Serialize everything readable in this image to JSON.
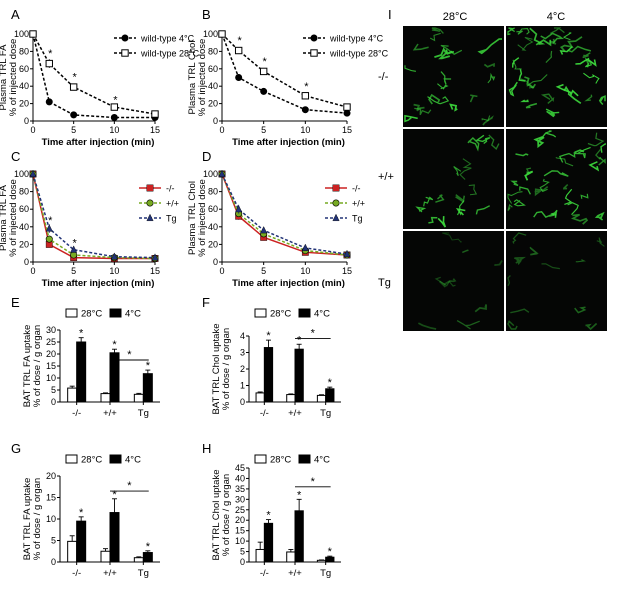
{
  "panel_letters": [
    "A",
    "B",
    "C",
    "D",
    "E",
    "F",
    "G",
    "H",
    "I"
  ],
  "colors": {
    "wt4": "#000000",
    "wt28": "#000000",
    "ko": "#cc2222",
    "wt": "#77aa22",
    "tg": "#223377",
    "bar_cold": "#000000",
    "bar_warm": "#ffffff",
    "microscopy_bg": "#050605",
    "microscopy_signal": "#3ddc3d"
  },
  "panel_i": {
    "col_headers": [
      "28°C",
      "4°C"
    ],
    "row_labels": [
      "-/-",
      "+/+",
      "Tg"
    ]
  },
  "chart_data": [
    {
      "id": "A",
      "type": "line",
      "ylabel_lines": [
        "Plasma TRL FA",
        "% of injected dose"
      ],
      "xlabel": "Time after injection (min)",
      "xlim": [
        0,
        15
      ],
      "ylim": [
        0,
        100
      ],
      "xticks": [
        "0",
        "5",
        "10",
        "15"
      ],
      "yticks": [
        "0",
        "20",
        "40",
        "60",
        "80",
        "100"
      ],
      "x": [
        0,
        2,
        5,
        10,
        15
      ],
      "series": [
        {
          "name": "wild-type 4°C",
          "values": [
            100,
            22,
            7,
            4,
            4
          ],
          "marker": "circle",
          "dash": true,
          "color_key": "wt4",
          "err": [
            0,
            3,
            1,
            1,
            1
          ]
        },
        {
          "name": "wild-type 28°C",
          "values": [
            100,
            66,
            39,
            16,
            8
          ],
          "marker": "square-open",
          "dash": true,
          "color_key": "wt28",
          "err": [
            0,
            5,
            3,
            2,
            2
          ]
        }
      ],
      "stars": [
        {
          "x": 2,
          "y": 78
        },
        {
          "x": 5,
          "y": 51
        },
        {
          "x": 10,
          "y": 25
        }
      ],
      "legend_position": "top-right"
    },
    {
      "id": "B",
      "type": "line",
      "ylabel_lines": [
        "Plasma TRL Chol",
        "% of injected dose"
      ],
      "xlabel": "Time after injection (min)",
      "xlim": [
        0,
        15
      ],
      "ylim": [
        0,
        100
      ],
      "xticks": [
        "0",
        "5",
        "10",
        "15"
      ],
      "yticks": [
        "0",
        "20",
        "40",
        "60",
        "80",
        "100"
      ],
      "x": [
        0,
        2,
        5,
        10,
        15
      ],
      "series": [
        {
          "name": "wild-type 4°C",
          "values": [
            100,
            50,
            34,
            13,
            9
          ],
          "marker": "circle",
          "dash": true,
          "color_key": "wt4",
          "err": [
            0,
            3,
            2,
            1,
            1
          ]
        },
        {
          "name": "wild-type 28°C",
          "values": [
            100,
            81,
            57,
            29,
            16
          ],
          "marker": "square-open",
          "dash": true,
          "color_key": "wt28",
          "err": [
            0,
            4,
            3,
            2,
            2
          ]
        }
      ],
      "stars": [
        {
          "x": 2,
          "y": 93
        },
        {
          "x": 5,
          "y": 69
        },
        {
          "x": 10,
          "y": 40
        }
      ],
      "legend_position": "top-right"
    },
    {
      "id": "C",
      "type": "line",
      "ylabel_lines": [
        "Plasma TRL FA",
        "% of injected dose"
      ],
      "xlabel": "Time after injection (min)",
      "xlim": [
        0,
        15
      ],
      "ylim": [
        0,
        100
      ],
      "xticks": [
        "0",
        "5",
        "10",
        "15"
      ],
      "yticks": [
        "0",
        "20",
        "40",
        "60",
        "80",
        "100"
      ],
      "x": [
        0,
        2,
        5,
        10,
        15
      ],
      "series": [
        {
          "name": "-/-",
          "values": [
            100,
            20,
            5,
            4,
            4
          ],
          "marker": "square",
          "dash": false,
          "color_key": "ko",
          "err": [
            0,
            3,
            1,
            1,
            1
          ]
        },
        {
          "name": "+/+",
          "values": [
            100,
            26,
            8,
            5,
            4
          ],
          "marker": "circle",
          "dash": true,
          "color_key": "wt",
          "err": [
            0,
            4,
            2,
            1,
            1
          ]
        },
        {
          "name": "Tg",
          "values": [
            100,
            38,
            14,
            6,
            5
          ],
          "marker": "triangle",
          "dash": true,
          "color_key": "tg",
          "err": [
            0,
            5,
            3,
            1,
            1
          ]
        }
      ],
      "stars": [
        {
          "x": 2,
          "y": 48
        },
        {
          "x": 5,
          "y": 22
        }
      ],
      "legend_position": "top-right"
    },
    {
      "id": "D",
      "type": "line",
      "ylabel_lines": [
        "Plasma TRL Chol",
        "% of injected dose"
      ],
      "xlabel": "Time after injection (min)",
      "xlim": [
        0,
        15
      ],
      "ylim": [
        0,
        100
      ],
      "xticks": [
        "0",
        "5",
        "10",
        "15"
      ],
      "yticks": [
        "0",
        "20",
        "40",
        "60",
        "80",
        "100"
      ],
      "x": [
        0,
        2,
        5,
        10,
        15
      ],
      "series": [
        {
          "name": "-/-",
          "values": [
            100,
            52,
            28,
            11,
            8
          ],
          "marker": "square",
          "dash": false,
          "color_key": "ko",
          "err": [
            0,
            4,
            2,
            1,
            1
          ]
        },
        {
          "name": "+/+",
          "values": [
            100,
            55,
            32,
            13,
            8
          ],
          "marker": "circle",
          "dash": true,
          "color_key": "wt",
          "err": [
            0,
            4,
            2,
            1,
            1
          ]
        },
        {
          "name": "Tg",
          "values": [
            100,
            60,
            36,
            16,
            9
          ],
          "marker": "triangle",
          "dash": true,
          "color_key": "tg",
          "err": [
            0,
            5,
            3,
            2,
            1
          ]
        }
      ],
      "stars": [],
      "legend_position": "top-right"
    },
    {
      "id": "E",
      "type": "bar",
      "ylabel_lines": [
        "BAT TRL FA uptake",
        "% of dose / g organ"
      ],
      "categories": [
        "-/-",
        "+/+",
        "Tg"
      ],
      "ylim": [
        0,
        30
      ],
      "yticks": [
        "0",
        "5",
        "10",
        "15",
        "20",
        "25",
        "30"
      ],
      "series": [
        {
          "name": "28°C",
          "values": [
            5.8,
            3.5,
            3.2
          ],
          "err": [
            0.8,
            0.3,
            0.4
          ],
          "color_key": "bar_warm"
        },
        {
          "name": "4°C",
          "values": [
            25,
            20.5,
            11.8
          ],
          "err": [
            1.8,
            1.5,
            1.5
          ],
          "color_key": "bar_cold"
        }
      ],
      "stars": [
        {
          "cat": 0,
          "s": 1
        },
        {
          "cat": 1,
          "s": 1
        },
        {
          "cat": 2,
          "s": 1
        }
      ],
      "bracket": {
        "from": 1,
        "to": 2,
        "label": "*",
        "y": 17.5
      },
      "legend_position": "top"
    },
    {
      "id": "F",
      "type": "bar",
      "ylabel_lines": [
        "BAT TRL Chol uptake",
        "% of dose / g organ"
      ],
      "categories": [
        "-/-",
        "+/+",
        "Tg"
      ],
      "ylim": [
        0,
        4
      ],
      "yticks": [
        "0",
        "1",
        "2",
        "3",
        "4"
      ],
      "series": [
        {
          "name": "28°C",
          "values": [
            0.55,
            0.45,
            0.4
          ],
          "err": [
            0.06,
            0.04,
            0.04
          ],
          "color_key": "bar_warm"
        },
        {
          "name": "4°C",
          "values": [
            3.3,
            3.2,
            0.8
          ],
          "err": [
            0.45,
            0.3,
            0.1
          ],
          "color_key": "bar_cold"
        }
      ],
      "stars": [
        {
          "cat": 0,
          "s": 1
        },
        {
          "cat": 1,
          "s": 1
        },
        {
          "cat": 2,
          "s": 1
        }
      ],
      "bracket": {
        "from": 1,
        "to": 2,
        "label": "*",
        "y": 3.85
      },
      "legend_position": "top"
    },
    {
      "id": "G",
      "type": "bar",
      "ylabel_lines": [
        "BAT TRL FA uptake",
        "% of dose / g organ"
      ],
      "categories": [
        "-/-",
        "+/+",
        "Tg"
      ],
      "ylim": [
        0,
        20
      ],
      "yticks": [
        "0",
        "5",
        "10",
        "15",
        "20"
      ],
      "series": [
        {
          "name": "28°C",
          "values": [
            4.8,
            2.5,
            1.0
          ],
          "err": [
            1.3,
            0.6,
            0.2
          ],
          "color_key": "bar_warm"
        },
        {
          "name": "4°C",
          "values": [
            9.5,
            11.5,
            2.2
          ],
          "err": [
            1.0,
            3.2,
            0.4
          ],
          "color_key": "bar_cold"
        }
      ],
      "stars": [
        {
          "cat": 0,
          "s": 1
        },
        {
          "cat": 1,
          "s": 1
        },
        {
          "cat": 2,
          "s": 1
        }
      ],
      "bracket": {
        "from": 1,
        "to": 2,
        "label": "*",
        "y": 16.5
      },
      "legend_position": "top"
    },
    {
      "id": "H",
      "type": "bar",
      "ylabel_lines": [
        "BAT TRL Chol uptake",
        "% of dose / g organ"
      ],
      "categories": [
        "-/-",
        "+/+",
        "Tg"
      ],
      "ylim": [
        0,
        45
      ],
      "yticks": [
        "0",
        "5",
        "10",
        "15",
        "20",
        "25",
        "30",
        "35",
        "40",
        "45"
      ],
      "series": [
        {
          "name": "28°C",
          "values": [
            6.0,
            4.8,
            0.8
          ],
          "err": [
            3.5,
            1.2,
            0.2
          ],
          "color_key": "bar_warm"
        },
        {
          "name": "4°C",
          "values": [
            18.5,
            24.5,
            2.3
          ],
          "err": [
            1.8,
            5.5,
            0.5
          ],
          "color_key": "bar_cold"
        }
      ],
      "stars": [
        {
          "cat": 0,
          "s": 1
        },
        {
          "cat": 1,
          "s": 1
        },
        {
          "cat": 2,
          "s": 1
        }
      ],
      "bracket": {
        "from": 1,
        "to": 2,
        "label": "*",
        "y": 36
      },
      "legend_position": "top"
    }
  ]
}
